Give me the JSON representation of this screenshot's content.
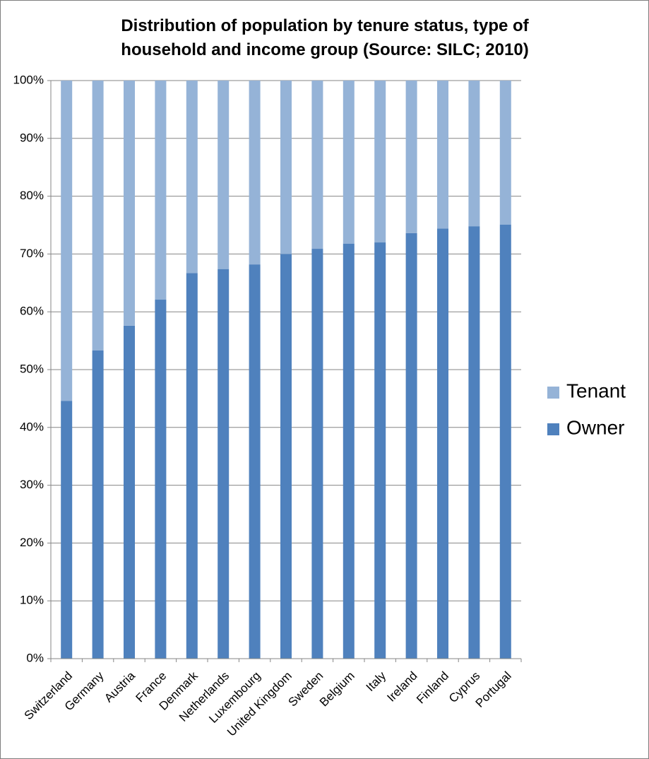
{
  "chart_data": {
    "type": "stacked_bar",
    "title": "Distribution of population by tenure status, type of household and income group (Source: SILC; 2010)",
    "categories": [
      "Switzerland",
      "Germany",
      "Austria",
      "France",
      "Denmark",
      "Netherlands",
      "Luxembourg",
      "United Kingdom",
      "Sweden",
      "Belgium",
      "Italy",
      "Ireland",
      "Finland",
      "Cyprus",
      "Portugal"
    ],
    "series": [
      {
        "name": "Owner",
        "color": "#4f81bd",
        "values": [
          44.6,
          53.3,
          57.6,
          62.1,
          66.7,
          67.4,
          68.2,
          70.0,
          70.9,
          71.8,
          72.0,
          73.6,
          74.4,
          74.8,
          75.1
        ]
      },
      {
        "name": "Tenant",
        "color": "#95b3d7",
        "values": [
          55.4,
          46.7,
          42.4,
          37.9,
          33.3,
          32.6,
          31.8,
          30.0,
          29.1,
          28.2,
          28.0,
          26.4,
          25.6,
          25.2,
          24.9
        ]
      }
    ],
    "ylim": [
      0,
      100
    ],
    "yticks": [
      {
        "value": 0,
        "label": "0%"
      },
      {
        "value": 10,
        "label": "10%"
      },
      {
        "value": 20,
        "label": "20%"
      },
      {
        "value": 30,
        "label": "30%"
      },
      {
        "value": 40,
        "label": "40%"
      },
      {
        "value": 50,
        "label": "50%"
      },
      {
        "value": 60,
        "label": "60%"
      },
      {
        "value": 70,
        "label": "70%"
      },
      {
        "value": 80,
        "label": "80%"
      },
      {
        "value": 90,
        "label": "90%"
      },
      {
        "value": 100,
        "label": "100%"
      }
    ],
    "grid": true,
    "legend": "right"
  }
}
